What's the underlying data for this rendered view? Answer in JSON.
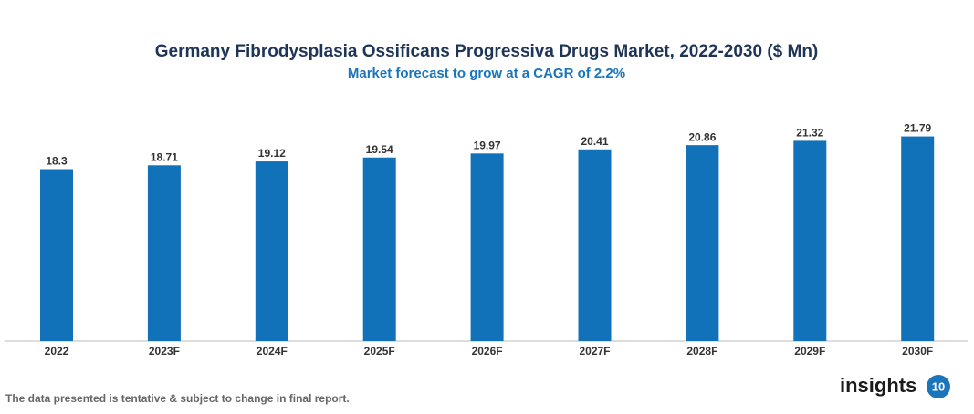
{
  "chart_data": {
    "type": "bar",
    "title": "Germany Fibrodysplasia Ossificans Progressiva Drugs Market, 2022-2030 ($ Mn)",
    "subtitle": "Market forecast to grow at a CAGR of 2.2%",
    "categories": [
      "2022",
      "2023F",
      "2024F",
      "2025F",
      "2026F",
      "2027F",
      "2028F",
      "2029F",
      "2030F"
    ],
    "values": [
      18.3,
      18.71,
      19.12,
      19.54,
      19.97,
      20.41,
      20.86,
      21.32,
      21.79
    ],
    "color": "#1172ba",
    "note": "The data presented is tentative & subject to change in final report."
  },
  "logo": {
    "text": "insights",
    "badge": "10"
  }
}
